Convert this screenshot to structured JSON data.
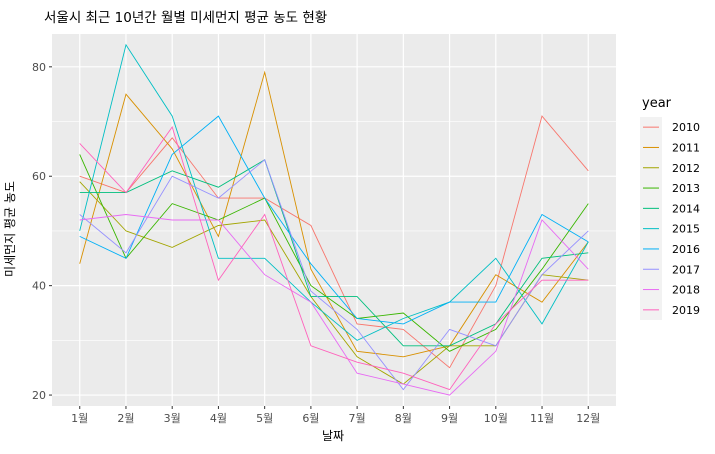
{
  "chart_data": {
    "type": "line",
    "title": "서울시 최근 10년간 월별 미세먼지 평균 농도 현황",
    "xlabel": "날짜",
    "ylabel": "미세먼지 평균 농도",
    "categories": [
      "1월",
      "2월",
      "3월",
      "4월",
      "5월",
      "6월",
      "7월",
      "8월",
      "9월",
      "10월",
      "11월",
      "12월"
    ],
    "yticks": [
      20,
      40,
      60,
      80
    ],
    "ylim": [
      18,
      86
    ],
    "grid": true,
    "legend": {
      "title": "year",
      "position": "right"
    },
    "series": [
      {
        "name": "2010",
        "color": "#F8766D",
        "values": [
          60,
          57,
          67,
          56,
          56,
          51,
          33,
          32,
          25,
          40,
          71,
          61
        ]
      },
      {
        "name": "2011",
        "color": "#D89000",
        "values": [
          44,
          75,
          65,
          49,
          79,
          43,
          28,
          27,
          29,
          42,
          37,
          48
        ]
      },
      {
        "name": "2012",
        "color": "#A3A500",
        "values": [
          59,
          50,
          47,
          51,
          52,
          38,
          27,
          22,
          29,
          29,
          42,
          41
        ]
      },
      {
        "name": "2013",
        "color": "#39B600",
        "values": [
          64,
          45,
          55,
          52,
          56,
          40,
          34,
          35,
          28,
          32,
          43,
          55
        ]
      },
      {
        "name": "2014",
        "color": "#00BF7D",
        "values": [
          57,
          57,
          61,
          58,
          63,
          38,
          38,
          29,
          29,
          33,
          45,
          46
        ]
      },
      {
        "name": "2015",
        "color": "#00BFC4",
        "values": [
          50,
          84,
          71,
          45,
          45,
          37,
          30,
          34,
          37,
          45,
          33,
          48
        ]
      },
      {
        "name": "2016",
        "color": "#00B0F6",
        "values": [
          49,
          45,
          64,
          71,
          56,
          44,
          34,
          33,
          37,
          37,
          53,
          48
        ]
      },
      {
        "name": "2017",
        "color": "#9590FF",
        "values": [
          53,
          46,
          60,
          56,
          63,
          39,
          32,
          21,
          32,
          29,
          42,
          50
        ]
      },
      {
        "name": "2018",
        "color": "#E76BF3",
        "values": [
          52,
          53,
          52,
          52,
          42,
          37,
          24,
          22,
          20,
          28,
          52,
          43
        ]
      },
      {
        "name": "2019",
        "color": "#FF62BC",
        "values": [
          66,
          57,
          69,
          41,
          53,
          29,
          26,
          24,
          21,
          33,
          41,
          41
        ]
      }
    ]
  }
}
